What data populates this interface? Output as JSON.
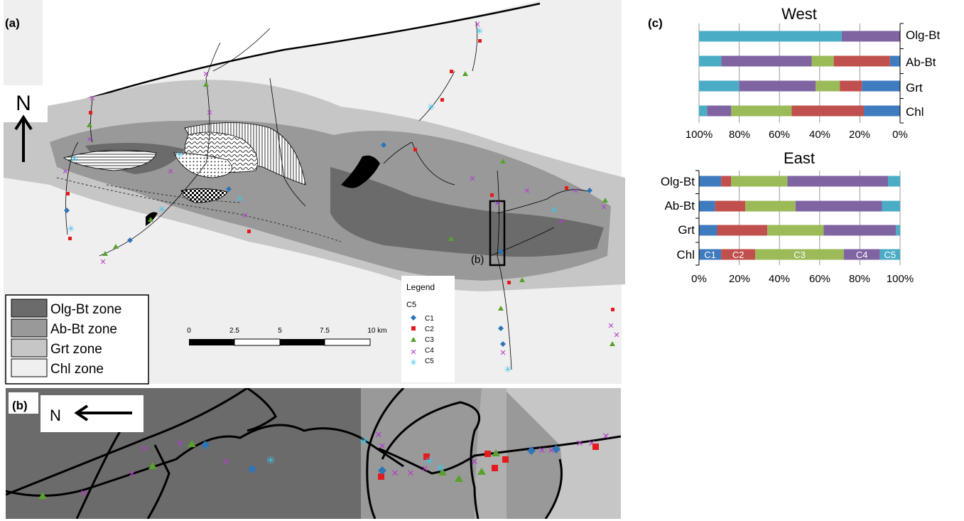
{
  "panel_a": {
    "label": "(a)",
    "north": "N",
    "inset_label": "(b)",
    "zone_legend": [
      {
        "label": "Olg-Bt zone",
        "color": "#6b6b6b"
      },
      {
        "label": "Ab-Bt zone",
        "color": "#999999"
      },
      {
        "label": "Grt zone",
        "color": "#c6c6c6"
      },
      {
        "label": "Chl zone",
        "color": "#efefef"
      }
    ],
    "cluster_legend": {
      "title": "Legend",
      "subtitle": "C5",
      "items": [
        {
          "label": "C1",
          "color": "#2e75b6",
          "icon": "diamond-icon"
        },
        {
          "label": "C2",
          "color": "#e41a1c",
          "icon": "square-icon"
        },
        {
          "label": "C3",
          "color": "#5aa02c",
          "icon": "triangle-icon"
        },
        {
          "label": "C4",
          "color": "#b03fc8",
          "icon": "cross-icon"
        },
        {
          "label": "C5",
          "color": "#3fc5e8",
          "icon": "asterisk-icon"
        }
      ]
    },
    "scale": {
      "ticks": [
        "0",
        "2.5",
        "5",
        "7.5",
        "10 km"
      ]
    }
  },
  "panel_b": {
    "label": "(b)",
    "north": "N"
  },
  "panel_c": {
    "label": "(c)"
  },
  "chart_data": [
    {
      "type": "bar",
      "stacked": true,
      "orientation": "horizontal",
      "title": "West",
      "x_axis": "reversed",
      "xlim": [
        0,
        100
      ],
      "xticks": [
        "100%",
        "80%",
        "60%",
        "40%",
        "20%",
        "0%"
      ],
      "categories": [
        "Olg-Bt",
        "Ab-Bt",
        "Grt",
        "Chl"
      ],
      "axis_side": "right",
      "series": [
        {
          "name": "C1",
          "color": "#3f7bbf",
          "values": [
            0,
            5,
            19,
            18
          ]
        },
        {
          "name": "C2",
          "color": "#c0504d",
          "values": [
            0,
            28,
            11,
            36
          ]
        },
        {
          "name": "C3",
          "color": "#9bbb59",
          "values": [
            0,
            11,
            12,
            30
          ]
        },
        {
          "name": "C4",
          "color": "#8064a2",
          "values": [
            29,
            45,
            38,
            12
          ]
        },
        {
          "name": "C5",
          "color": "#4bacc6",
          "values": [
            71,
            11,
            20,
            4
          ]
        }
      ]
    },
    {
      "type": "bar",
      "stacked": true,
      "orientation": "horizontal",
      "title": "East",
      "xlim": [
        0,
        100
      ],
      "xticks": [
        "0%",
        "20%",
        "40%",
        "60%",
        "80%",
        "100%"
      ],
      "categories": [
        "Olg-Bt",
        "Ab-Bt",
        "Grt",
        "Chl"
      ],
      "axis_side": "left",
      "series": [
        {
          "name": "C1",
          "color": "#3f7bbf",
          "values": [
            11,
            8,
            9,
            11
          ]
        },
        {
          "name": "C2",
          "color": "#c0504d",
          "values": [
            5,
            15,
            25,
            17
          ]
        },
        {
          "name": "C3",
          "color": "#9bbb59",
          "values": [
            28,
            25,
            28,
            44
          ]
        },
        {
          "name": "C4",
          "color": "#8064a2",
          "values": [
            50,
            43,
            36,
            18
          ]
        },
        {
          "name": "C5",
          "color": "#4bacc6",
          "values": [
            6,
            9,
            2,
            10
          ]
        }
      ],
      "inbar_labels": [
        "C1",
        "C2",
        "C3",
        "C4",
        "C5"
      ]
    }
  ]
}
